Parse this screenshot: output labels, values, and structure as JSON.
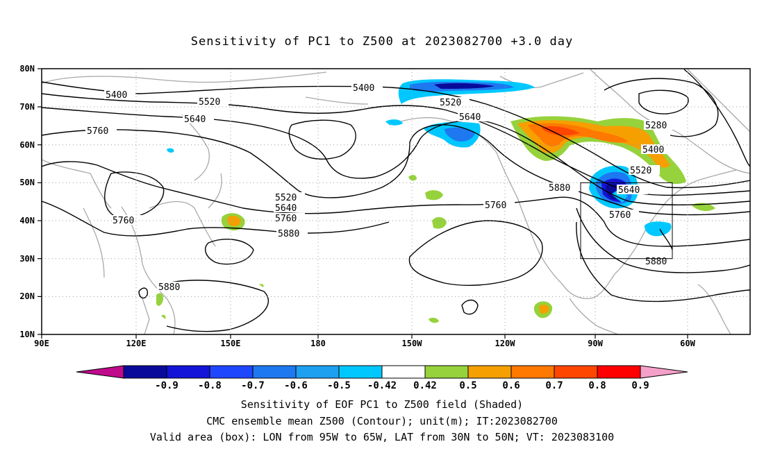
{
  "title": "Sensitivity of PC1 to Z500 at 2023082700 +3.0 day",
  "captions": [
    "Sensitivity of EOF PC1 to Z500 field (Shaded)",
    "CMC ensemble mean Z500 (Contour); unit(m); IT:2023082700",
    "Valid area (box): LON from 95W to 65W, LAT from 30N to 50N; VT: 2023083100"
  ],
  "lat_labels": [
    "80N",
    "70N",
    "60N",
    "50N",
    "40N",
    "30N",
    "20N",
    "10N"
  ],
  "lon_labels": [
    "90E",
    "120E",
    "150E",
    "180",
    "150W",
    "120W",
    "90W",
    "60W"
  ],
  "contour_labels": [
    "5400",
    "5520",
    "5640",
    "5760",
    "5400",
    "5520",
    "5640",
    "5760",
    "5520",
    "5640",
    "5760",
    "5880",
    "5880",
    "5760",
    "5880",
    "5640",
    "5520",
    "5400",
    "5280",
    "5880",
    "5760"
  ],
  "colorbar": {
    "colors": [
      "#c00a8c",
      "#0a0a9a",
      "#1414d8",
      "#1e46ff",
      "#1e78f0",
      "#1ea0f0",
      "#00c8ff",
      "#ffffff",
      "#96d23c",
      "#f5a000",
      "#ff7800",
      "#ff4600",
      "#ff0000",
      "#f5a0c8"
    ],
    "labels": [
      "-0.9",
      "-0.8",
      "-0.7",
      "-0.6",
      "-0.5",
      "-0.42",
      "0.42",
      "0.5",
      "0.6",
      "0.7",
      "0.8",
      "0.9"
    ]
  }
}
